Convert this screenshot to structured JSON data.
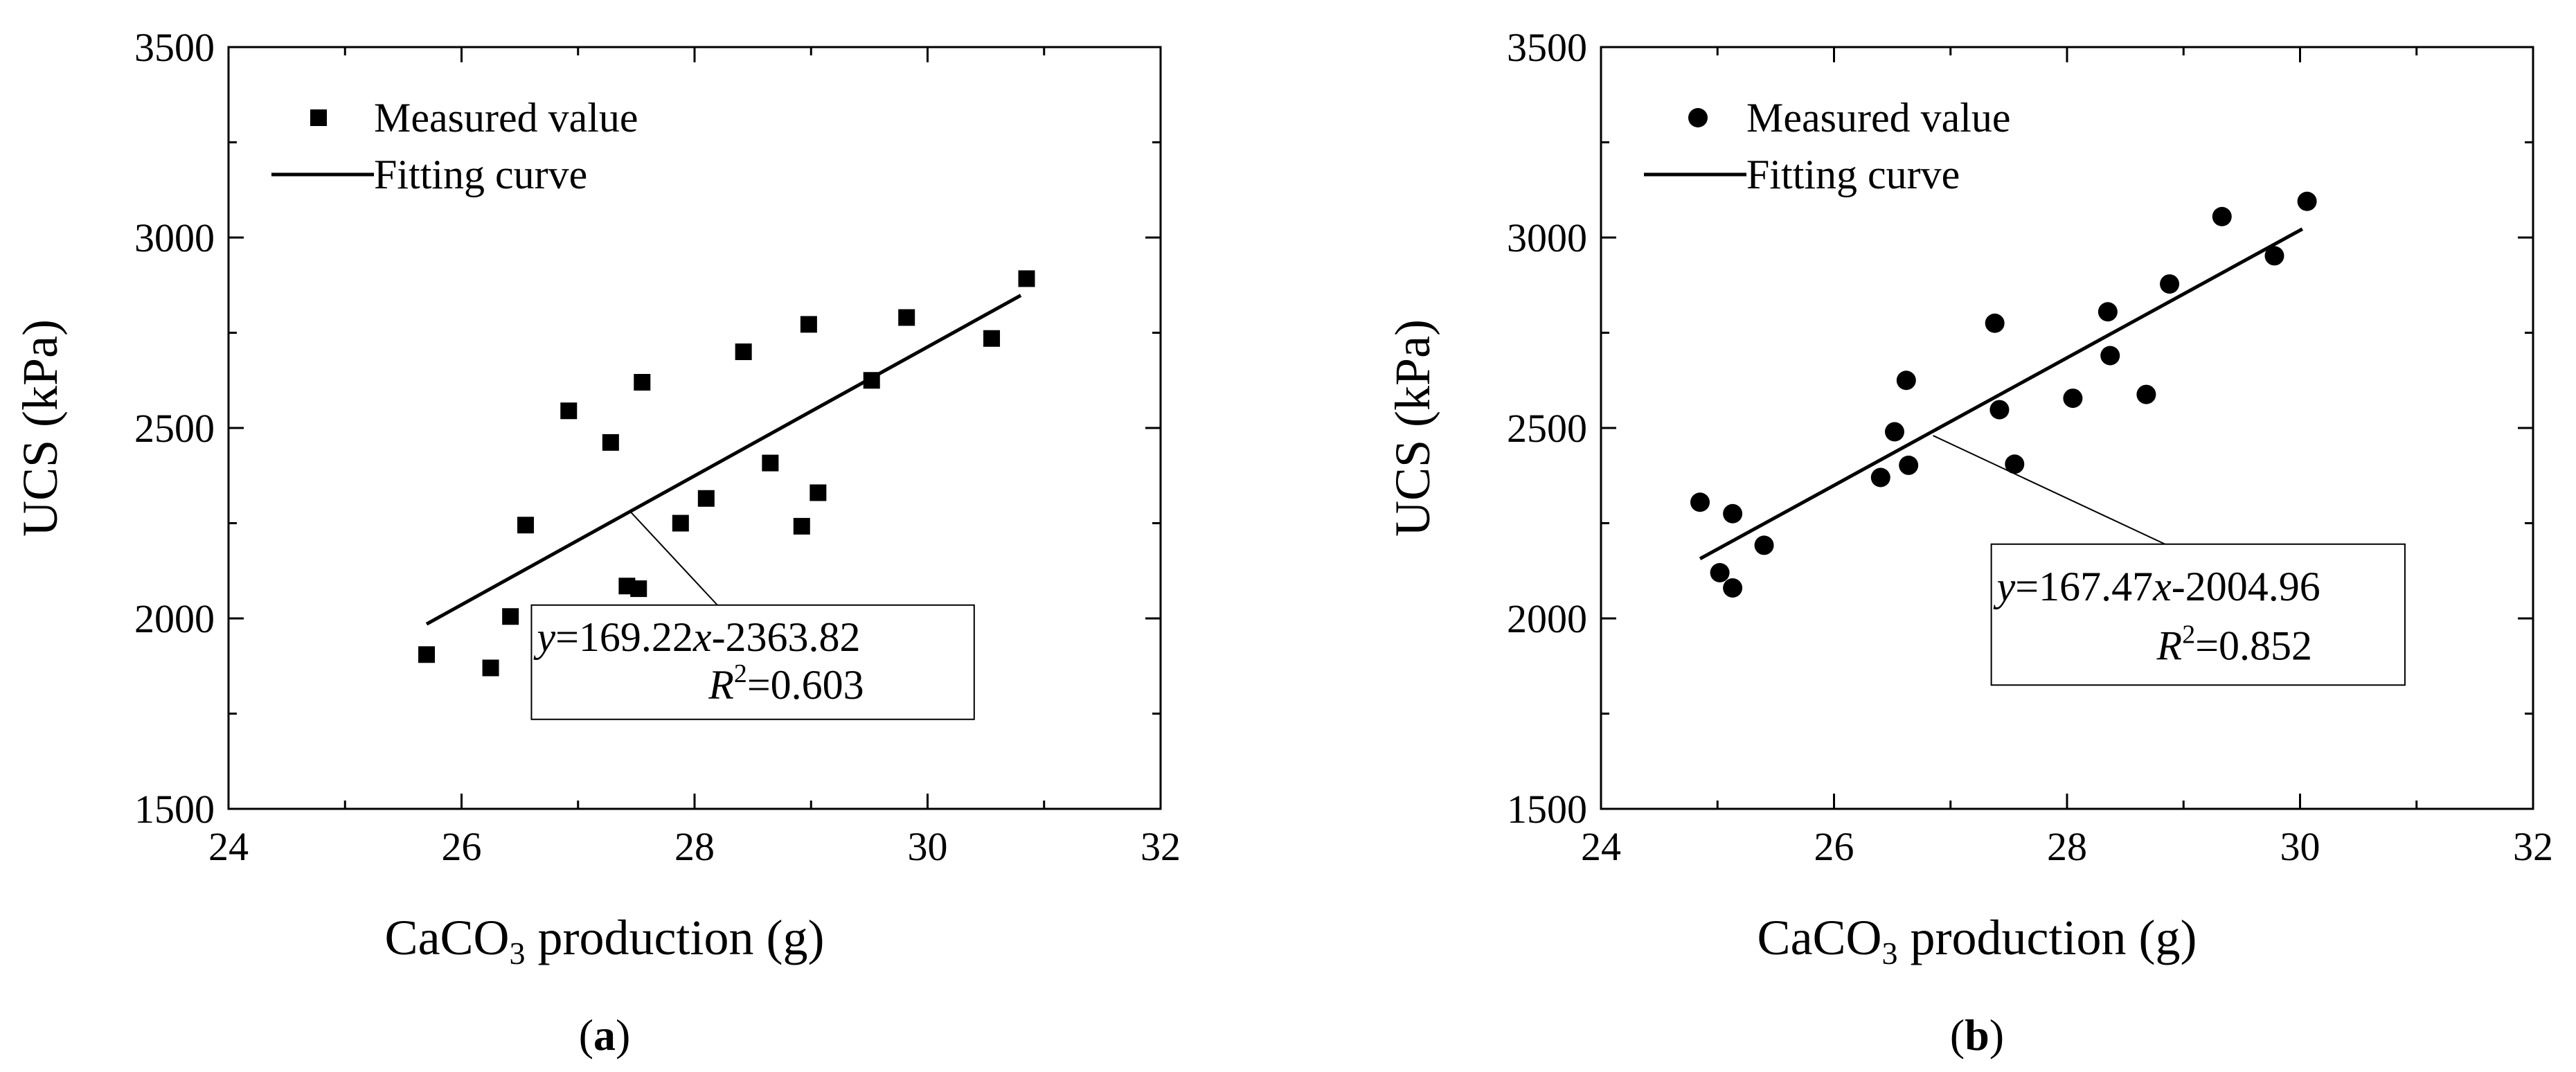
{
  "colors": {
    "ink": "#000000",
    "background": "#ffffff"
  },
  "chart_data": [
    {
      "type": "scatter",
      "panel_label": "a",
      "marker": "square",
      "xlabel_main": "CaCO",
      "xlabel_sub": "3",
      "xlabel_rest": " production (g)",
      "ylabel": "UCS (kPa)",
      "xlim": [
        24,
        32
      ],
      "ylim": [
        1500,
        3500
      ],
      "x_ticks": [
        24,
        26,
        28,
        30,
        32
      ],
      "y_ticks": [
        1500,
        2000,
        2500,
        3000,
        3500
      ],
      "x_tick_labels": [
        "24",
        "26",
        "28",
        "30",
        "32"
      ],
      "y_tick_labels": [
        "1500",
        "2000",
        "2500",
        "3000",
        "3500"
      ],
      "legend": {
        "position": "top-left",
        "measured": "Measured value",
        "fitting": "Fitting curve"
      },
      "points": [
        {
          "x": 25.7,
          "y": 1905
        },
        {
          "x": 26.25,
          "y": 1870
        },
        {
          "x": 26.42,
          "y": 2005
        },
        {
          "x": 26.55,
          "y": 2245
        },
        {
          "x": 26.92,
          "y": 2545
        },
        {
          "x": 27.28,
          "y": 2462
        },
        {
          "x": 27.42,
          "y": 2085
        },
        {
          "x": 27.52,
          "y": 2078
        },
        {
          "x": 27.55,
          "y": 2620
        },
        {
          "x": 27.88,
          "y": 2250
        },
        {
          "x": 28.1,
          "y": 2315
        },
        {
          "x": 28.42,
          "y": 2700
        },
        {
          "x": 28.65,
          "y": 2408
        },
        {
          "x": 28.92,
          "y": 2242
        },
        {
          "x": 28.98,
          "y": 2772
        },
        {
          "x": 29.06,
          "y": 2330
        },
        {
          "x": 29.52,
          "y": 2625
        },
        {
          "x": 29.82,
          "y": 2790
        },
        {
          "x": 30.55,
          "y": 2735
        },
        {
          "x": 30.85,
          "y": 2892
        }
      ],
      "fit": {
        "slope": 169.22,
        "intercept": -2363.82,
        "x_start": 25.7,
        "x_end": 30.8
      },
      "equation": {
        "y_sym": "y",
        "eq_mid": "=169.22",
        "x_sym": "x",
        "eq_end": "-2363.82",
        "r_sym": "R",
        "r_sup": "2",
        "r_val": "=0.603"
      },
      "annotation": {
        "x": 27.45,
        "y": 2280,
        "box_x": 26.6,
        "box_x2": 30.4,
        "box_y_top": 2035,
        "box_y_bottom": 1735
      }
    },
    {
      "type": "scatter",
      "panel_label": "b",
      "marker": "circle",
      "xlabel_main": "CaCO",
      "xlabel_sub": "3",
      "xlabel_rest": " production (g)",
      "ylabel": "UCS (kPa)",
      "xlim": [
        24,
        32
      ],
      "ylim": [
        1500,
        3500
      ],
      "x_ticks": [
        24,
        26,
        28,
        30,
        32
      ],
      "y_ticks": [
        1500,
        2000,
        2500,
        3000,
        3500
      ],
      "x_tick_labels": [
        "24",
        "26",
        "28",
        "30",
        "32"
      ],
      "y_tick_labels": [
        "1500",
        "2000",
        "2500",
        "3000",
        "3500"
      ],
      "legend": {
        "position": "top-left",
        "measured": "Measured value",
        "fitting": "Fitting curve"
      },
      "points": [
        {
          "x": 24.85,
          "y": 2305
        },
        {
          "x": 25.02,
          "y": 2120
        },
        {
          "x": 25.13,
          "y": 2275
        },
        {
          "x": 25.13,
          "y": 2080
        },
        {
          "x": 25.4,
          "y": 2192
        },
        {
          "x": 26.4,
          "y": 2370
        },
        {
          "x": 26.52,
          "y": 2490
        },
        {
          "x": 26.62,
          "y": 2625
        },
        {
          "x": 26.64,
          "y": 2402
        },
        {
          "x": 27.38,
          "y": 2775
        },
        {
          "x": 27.42,
          "y": 2548
        },
        {
          "x": 27.55,
          "y": 2405
        },
        {
          "x": 28.05,
          "y": 2578
        },
        {
          "x": 28.35,
          "y": 2805
        },
        {
          "x": 28.37,
          "y": 2690
        },
        {
          "x": 28.68,
          "y": 2588
        },
        {
          "x": 28.88,
          "y": 2878
        },
        {
          "x": 29.33,
          "y": 3055
        },
        {
          "x": 29.78,
          "y": 2952
        },
        {
          "x": 30.06,
          "y": 3095
        }
      ],
      "fit": {
        "slope": 167.47,
        "intercept": -2004.96,
        "x_start": 24.85,
        "x_end": 30.02
      },
      "equation": {
        "y_sym": "y",
        "eq_mid": "=167.47",
        "x_sym": "x",
        "eq_end": "-2004.96",
        "r_sym": "R",
        "r_sup": "2",
        "r_val": "=0.852"
      },
      "annotation": {
        "x": 26.85,
        "y": 2480,
        "box_x": 27.35,
        "box_x2": 30.9,
        "box_y_top": 2195,
        "box_y_bottom": 1825
      }
    }
  ]
}
